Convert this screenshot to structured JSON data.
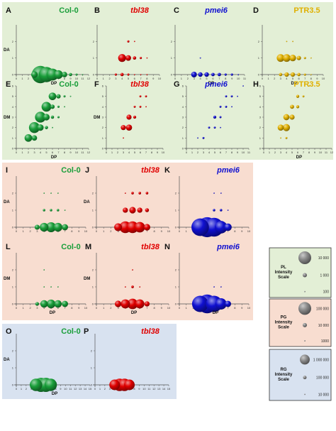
{
  "colors": {
    "col0": "#1a9e3a",
    "tbl38": "#e00000",
    "pmei6": "#1010d0",
    "ptr35": "#e0b000",
    "group1_bg": "#e3efd6",
    "group2_bg": "#f8ddd0",
    "group3_bg": "#d8e2f0",
    "scale_pl_bg": "#e3efd6",
    "scale_pg_bg": "#f8ddd0",
    "scale_rg_bg": "#d8e2f0",
    "axis": "#555555"
  },
  "axis_labels": {
    "DA": "DA",
    "DM": "DM",
    "DP": "DP"
  },
  "legend_scales": [
    {
      "title": "PL\nIntensity\nScale",
      "labels": [
        "10 000",
        "1 000",
        "100"
      ]
    },
    {
      "title": "PG\nIntensity\nScale",
      "labels": [
        "100 000",
        "10 000",
        "1000"
      ]
    },
    {
      "title": "RG\nIntensity\nScale",
      "labels": [
        "1 000 000",
        "100 000",
        "10 000"
      ]
    }
  ],
  "chart_data": [
    {
      "id": "A",
      "label": "A",
      "title": "Col-0",
      "title_style": "normal",
      "color_key": "col0",
      "type": "scatter",
      "xlabel": "DP",
      "ylabel": "DA",
      "xlim": [
        0,
        12
      ],
      "ylim": [
        0,
        3
      ],
      "xticks": [
        0,
        1,
        2,
        3,
        4,
        5,
        6,
        7,
        8,
        9,
        10,
        11,
        12
      ],
      "yticks": [
        0,
        1,
        2
      ],
      "points": [
        [
          4,
          0,
          16
        ],
        [
          5,
          0,
          14
        ],
        [
          6,
          0,
          11
        ],
        [
          7,
          0,
          8
        ],
        [
          8,
          0,
          5
        ],
        [
          9,
          0,
          3
        ],
        [
          10,
          0,
          2
        ],
        [
          11,
          0,
          1
        ],
        [
          3,
          0,
          6
        ]
      ]
    },
    {
      "id": "B",
      "label": "B",
      "title": "tbl38",
      "title_style": "italic",
      "color_key": "tbl38",
      "type": "scatter",
      "xlabel": "",
      "ylabel": "",
      "xlim": [
        0,
        10
      ],
      "ylim": [
        0,
        3
      ],
      "xticks": [
        0,
        1,
        2,
        3,
        4,
        5,
        6,
        7,
        8,
        9,
        10
      ],
      "yticks": [
        0,
        1,
        2
      ],
      "points": [
        [
          3,
          0,
          2
        ],
        [
          4,
          0,
          3
        ],
        [
          5,
          0,
          2
        ],
        [
          6,
          0,
          1
        ],
        [
          7,
          0,
          1
        ],
        [
          8,
          0,
          1
        ],
        [
          4,
          1,
          7
        ],
        [
          5,
          1,
          5
        ],
        [
          6,
          1,
          3
        ],
        [
          7,
          1,
          2
        ],
        [
          8,
          1,
          1
        ],
        [
          5,
          2,
          2
        ],
        [
          6,
          2,
          1
        ]
      ]
    },
    {
      "id": "C",
      "label": "C",
      "title": "pmei6",
      "title_style": "italic",
      "color_key": "pmei6",
      "type": "scatter",
      "xlabel": "DP",
      "ylabel": "",
      "xlim": [
        0,
        11
      ],
      "ylim": [
        0,
        3
      ],
      "xticks": [
        0,
        1,
        2,
        3,
        4,
        5,
        6,
        7,
        8,
        9,
        10,
        11
      ],
      "yticks": [
        0,
        1,
        2
      ],
      "points": [
        [
          3,
          0,
          5
        ],
        [
          4,
          0,
          4
        ],
        [
          5,
          0,
          4
        ],
        [
          6,
          0,
          3
        ],
        [
          7,
          0,
          3
        ],
        [
          8,
          0,
          2
        ],
        [
          9,
          0,
          2
        ],
        [
          10,
          0,
          1
        ],
        [
          4,
          1,
          1
        ]
      ]
    },
    {
      "id": "D",
      "label": "D",
      "title": "PTR3.5",
      "title_style": "normal",
      "color_key": "ptr35",
      "type": "scatter",
      "xlabel": "DP",
      "ylabel": "",
      "xlim": [
        0,
        10
      ],
      "ylim": [
        0,
        3
      ],
      "xticks": [
        0,
        1,
        2,
        3,
        4,
        5,
        6,
        7,
        8,
        9,
        10
      ],
      "yticks": [
        0,
        1,
        2
      ],
      "points": [
        [
          3,
          0,
          3
        ],
        [
          4,
          0,
          4
        ],
        [
          5,
          0,
          4
        ],
        [
          6,
          0,
          3
        ],
        [
          7,
          0,
          2
        ],
        [
          8,
          0,
          1
        ],
        [
          3,
          1,
          7
        ],
        [
          4,
          1,
          7
        ],
        [
          5,
          1,
          6
        ],
        [
          6,
          1,
          4
        ],
        [
          7,
          1,
          2
        ],
        [
          8,
          1,
          1
        ],
        [
          4,
          2,
          1
        ],
        [
          5,
          2,
          1
        ]
      ]
    },
    {
      "id": "E",
      "label": "E",
      "title": "Col-0",
      "title_style": "normal",
      "color_key": "col0",
      "type": "scatter",
      "xlabel": "DP",
      "ylabel": "DM",
      "xlim": [
        0,
        12
      ],
      "ylim": [
        0,
        6
      ],
      "xticks": [
        0,
        1,
        2,
        3,
        4,
        5,
        6,
        7,
        8,
        9,
        10,
        11,
        12
      ],
      "yticks": [
        0,
        1,
        2,
        3,
        4,
        5,
        6
      ],
      "points": [
        [
          2,
          1,
          7
        ],
        [
          3,
          2,
          10
        ],
        [
          4,
          3,
          10
        ],
        [
          5,
          4,
          9
        ],
        [
          6,
          5,
          7
        ],
        [
          7,
          5,
          4
        ],
        [
          3,
          1,
          5
        ],
        [
          4,
          2,
          6
        ],
        [
          5,
          3,
          6
        ],
        [
          6,
          4,
          4
        ],
        [
          7,
          4,
          2
        ],
        [
          8,
          4,
          1
        ],
        [
          5,
          2,
          3
        ],
        [
          6,
          3,
          3
        ],
        [
          7,
          3,
          2
        ],
        [
          8,
          5,
          2
        ],
        [
          9,
          5,
          1
        ],
        [
          10,
          6,
          1
        ],
        [
          6,
          2,
          1
        ]
      ]
    },
    {
      "id": "F",
      "label": "F",
      "title": "tbl38",
      "title_style": "italic",
      "color_key": "tbl38",
      "type": "scatter",
      "xlabel": "",
      "ylabel": "DM",
      "xlim": [
        0,
        10
      ],
      "ylim": [
        0,
        6
      ],
      "xticks": [
        0,
        1,
        2,
        3,
        4,
        5,
        6,
        7,
        8,
        9,
        10
      ],
      "yticks": [
        0,
        1,
        2,
        3,
        4,
        5,
        6
      ],
      "points": [
        [
          3,
          1,
          1
        ],
        [
          3,
          2,
          5
        ],
        [
          4,
          2,
          6
        ],
        [
          4,
          3,
          5
        ],
        [
          5,
          3,
          3
        ],
        [
          5,
          4,
          2
        ],
        [
          6,
          4,
          2
        ],
        [
          6,
          5,
          2
        ],
        [
          7,
          5,
          2
        ],
        [
          7,
          4,
          1
        ]
      ]
    },
    {
      "id": "G",
      "label": "G",
      "title": "pmei6",
      "title_style": "italic",
      "color_key": "pmei6",
      "type": "scatter",
      "xlabel": "",
      "ylabel": "",
      "xlim": [
        0,
        11
      ],
      "ylim": [
        0,
        6
      ],
      "xticks": [
        0,
        1,
        2,
        3,
        4,
        5,
        6,
        7,
        8,
        9,
        10,
        11
      ],
      "yticks": [
        0,
        1,
        2,
        3,
        4,
        5,
        6
      ],
      "points": [
        [
          2,
          1,
          1
        ],
        [
          3,
          1,
          2
        ],
        [
          4,
          2,
          2
        ],
        [
          5,
          2,
          2
        ],
        [
          5,
          3,
          3
        ],
        [
          6,
          3,
          2
        ],
        [
          6,
          4,
          2
        ],
        [
          7,
          4,
          2
        ],
        [
          7,
          5,
          2
        ],
        [
          8,
          5,
          2
        ],
        [
          8,
          4,
          1
        ],
        [
          9,
          5,
          1
        ],
        [
          10,
          6,
          1
        ],
        [
          6,
          2,
          1
        ]
      ]
    },
    {
      "id": "H",
      "label": "H",
      "title": "PTR3.5",
      "title_style": "normal",
      "color_key": "ptr35",
      "type": "scatter",
      "xlabel": "DP",
      "ylabel": "",
      "xlim": [
        0,
        12
      ],
      "ylim": [
        0,
        6
      ],
      "xticks": [
        0,
        1,
        2,
        3,
        4,
        5,
        6,
        7,
        8,
        9,
        10,
        11,
        12
      ],
      "yticks": [
        0,
        1,
        2,
        3,
        4,
        5,
        6
      ],
      "points": [
        [
          3,
          2,
          6
        ],
        [
          4,
          2,
          7
        ],
        [
          4,
          3,
          6
        ],
        [
          5,
          3,
          5
        ],
        [
          5,
          4,
          4
        ],
        [
          6,
          4,
          3
        ],
        [
          6,
          5,
          3
        ],
        [
          7,
          5,
          2
        ],
        [
          8,
          6,
          1
        ],
        [
          4,
          1,
          2
        ],
        [
          3,
          1,
          1
        ]
      ]
    },
    {
      "id": "I",
      "label": "I",
      "title": "Col-0",
      "title_style": "normal",
      "color_key": "col0",
      "type": "scatter",
      "xlabel": "",
      "ylabel": "DA",
      "xlim": [
        0,
        10
      ],
      "ylim": [
        0,
        3
      ],
      "xticks": [
        0,
        1,
        2,
        3,
        4,
        5,
        6,
        7,
        8,
        9,
        10
      ],
      "yticks": [
        0,
        1,
        2
      ],
      "points": [
        [
          3,
          0,
          4
        ],
        [
          4,
          0,
          7
        ],
        [
          5,
          0,
          8
        ],
        [
          6,
          0,
          7
        ],
        [
          7,
          0,
          5
        ],
        [
          4,
          1,
          2
        ],
        [
          5,
          1,
          2
        ],
        [
          6,
          1,
          2
        ],
        [
          7,
          1,
          1
        ],
        [
          4,
          2,
          1
        ],
        [
          5,
          2,
          1
        ],
        [
          6,
          2,
          1
        ]
      ]
    },
    {
      "id": "J",
      "label": "J",
      "title": "tbl38",
      "title_style": "italic",
      "color_key": "tbl38",
      "type": "scatter",
      "xlabel": "",
      "ylabel": "DA",
      "xlim": [
        0,
        10
      ],
      "ylim": [
        0,
        3
      ],
      "xticks": [
        0,
        1,
        2,
        3,
        4,
        5,
        6,
        7,
        8,
        9,
        10
      ],
      "yticks": [
        0,
        1,
        2
      ],
      "points": [
        [
          3,
          0,
          6
        ],
        [
          4,
          0,
          9
        ],
        [
          5,
          0,
          9
        ],
        [
          6,
          0,
          8
        ],
        [
          7,
          0,
          5
        ],
        [
          4,
          1,
          4
        ],
        [
          5,
          1,
          5
        ],
        [
          6,
          1,
          4
        ],
        [
          7,
          1,
          3
        ],
        [
          4,
          2,
          1
        ],
        [
          5,
          2,
          2
        ],
        [
          6,
          2,
          2
        ],
        [
          7,
          2,
          2
        ]
      ]
    },
    {
      "id": "K",
      "label": "K",
      "title": "pmei6",
      "title_style": "italic",
      "color_key": "pmei6",
      "type": "scatter",
      "xlabel": "",
      "ylabel": "",
      "xlim": [
        0,
        10
      ],
      "ylim": [
        0,
        3
      ],
      "xticks": [
        0,
        1,
        2,
        3,
        4,
        5,
        6,
        7,
        8,
        9,
        10
      ],
      "yticks": [
        0,
        1,
        2
      ],
      "points": [
        [
          3,
          0,
          14
        ],
        [
          4,
          0,
          16
        ],
        [
          5,
          0,
          15
        ],
        [
          6,
          0,
          10
        ],
        [
          7,
          0,
          6
        ],
        [
          5,
          1,
          2
        ],
        [
          6,
          1,
          2
        ],
        [
          7,
          1,
          1
        ],
        [
          5,
          2,
          1
        ],
        [
          6,
          2,
          1
        ]
      ]
    },
    {
      "id": "L",
      "label": "L",
      "title": "Col-0",
      "title_style": "normal",
      "color_key": "col0",
      "type": "scatter",
      "xlabel": "DP",
      "ylabel": "DM",
      "xlim": [
        0,
        10
      ],
      "ylim": [
        0,
        3
      ],
      "xticks": [
        0,
        1,
        2,
        3,
        4,
        5,
        6,
        7,
        8,
        9,
        10
      ],
      "yticks": [
        0,
        1,
        2
      ],
      "points": [
        [
          3,
          0,
          3
        ],
        [
          4,
          0,
          6
        ],
        [
          5,
          0,
          7
        ],
        [
          6,
          0,
          6
        ],
        [
          7,
          0,
          5
        ],
        [
          4,
          1,
          1
        ],
        [
          5,
          1,
          1
        ],
        [
          6,
          1,
          1
        ],
        [
          4,
          2,
          1
        ]
      ]
    },
    {
      "id": "M",
      "label": "M",
      "title": "tbl38",
      "title_style": "italic",
      "color_key": "tbl38",
      "type": "scatter",
      "xlabel": "DP",
      "ylabel": "DM",
      "xlim": [
        0,
        10
      ],
      "ylim": [
        0,
        3
      ],
      "xticks": [
        0,
        1,
        2,
        3,
        4,
        5,
        6,
        7,
        8,
        9,
        10
      ],
      "yticks": [
        0,
        1,
        2
      ],
      "points": [
        [
          3,
          0,
          5
        ],
        [
          4,
          0,
          7
        ],
        [
          5,
          0,
          8
        ],
        [
          6,
          0,
          7
        ],
        [
          7,
          0,
          4
        ],
        [
          4,
          1,
          1
        ],
        [
          5,
          1,
          2
        ],
        [
          6,
          1,
          1
        ],
        [
          5,
          2,
          1
        ]
      ]
    },
    {
      "id": "N",
      "label": "N",
      "title": "pmei6",
      "title_style": "italic",
      "color_key": "pmei6",
      "type": "scatter",
      "xlabel": "DP",
      "ylabel": "",
      "xlim": [
        0,
        10
      ],
      "ylim": [
        0,
        3
      ],
      "xticks": [
        0,
        1,
        2,
        3,
        4,
        5,
        6,
        7,
        8,
        9,
        10
      ],
      "yticks": [
        0,
        1,
        2
      ],
      "points": [
        [
          3,
          0,
          13
        ],
        [
          4,
          0,
          15
        ],
        [
          5,
          0,
          13
        ],
        [
          6,
          0,
          9
        ],
        [
          7,
          0,
          5
        ],
        [
          5,
          1,
          1
        ],
        [
          6,
          1,
          1
        ]
      ]
    },
    {
      "id": "O",
      "label": "O",
      "title": "Col-0",
      "title_style": "normal",
      "color_key": "col0",
      "type": "scatter",
      "xlabel": "DP",
      "ylabel": "DA",
      "xlim": [
        0,
        15
      ],
      "ylim": [
        0,
        3
      ],
      "xticks": [
        0,
        1,
        2,
        3,
        4,
        5,
        6,
        7,
        8,
        9,
        10,
        11,
        12,
        13,
        14,
        15
      ],
      "yticks": [
        0,
        1,
        2
      ],
      "points": [
        [
          4,
          0,
          14
        ],
        [
          5,
          0,
          16
        ],
        [
          6,
          0,
          16
        ],
        [
          7,
          0,
          14
        ]
      ]
    },
    {
      "id": "P",
      "label": "P",
      "title": "tbl38",
      "title_style": "italic",
      "color_key": "tbl38",
      "type": "scatter",
      "xlabel": "",
      "ylabel": "",
      "xlim": [
        0,
        15
      ],
      "ylim": [
        0,
        3
      ],
      "xticks": [
        0,
        1,
        2,
        3,
        4,
        5,
        6,
        7,
        8,
        9,
        10,
        11,
        12,
        13,
        14,
        15
      ],
      "yticks": [
        0,
        1,
        2
      ],
      "points": [
        [
          4,
          0,
          12
        ],
        [
          5,
          0,
          14
        ],
        [
          6,
          0,
          14
        ],
        [
          7,
          0,
          12
        ]
      ]
    }
  ]
}
